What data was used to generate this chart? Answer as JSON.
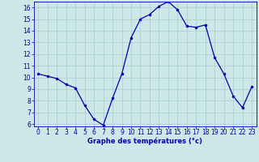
{
  "hours": [
    0,
    1,
    2,
    3,
    4,
    5,
    6,
    7,
    8,
    9,
    10,
    11,
    12,
    13,
    14,
    15,
    16,
    17,
    18,
    19,
    20,
    21,
    22,
    23
  ],
  "temps": [
    10.3,
    10.1,
    9.9,
    9.4,
    9.1,
    7.6,
    6.4,
    5.9,
    8.2,
    10.3,
    13.4,
    15.0,
    15.4,
    16.1,
    16.5,
    15.8,
    14.4,
    14.3,
    14.5,
    11.7,
    10.3,
    8.4,
    7.4,
    9.2
  ],
  "xlabel": "Graphe des températures (°c)",
  "ylim": [
    5.8,
    16.5
  ],
  "xlim": [
    -0.5,
    23.5
  ],
  "yticks": [
    6,
    7,
    8,
    9,
    10,
    11,
    12,
    13,
    14,
    15,
    16
  ],
  "xticks": [
    0,
    1,
    2,
    3,
    4,
    5,
    6,
    7,
    8,
    9,
    10,
    11,
    12,
    13,
    14,
    15,
    16,
    17,
    18,
    19,
    20,
    21,
    22,
    23
  ],
  "line_color": "#0000AA",
  "marker_color": "#0000AA",
  "bg_color": "#cce8e8",
  "grid_color": "#aacccc",
  "axis_label_color": "#0000AA",
  "tick_label_color": "#0000AA",
  "xlabel_fontsize": 6.0,
  "tick_fontsize": 5.5
}
